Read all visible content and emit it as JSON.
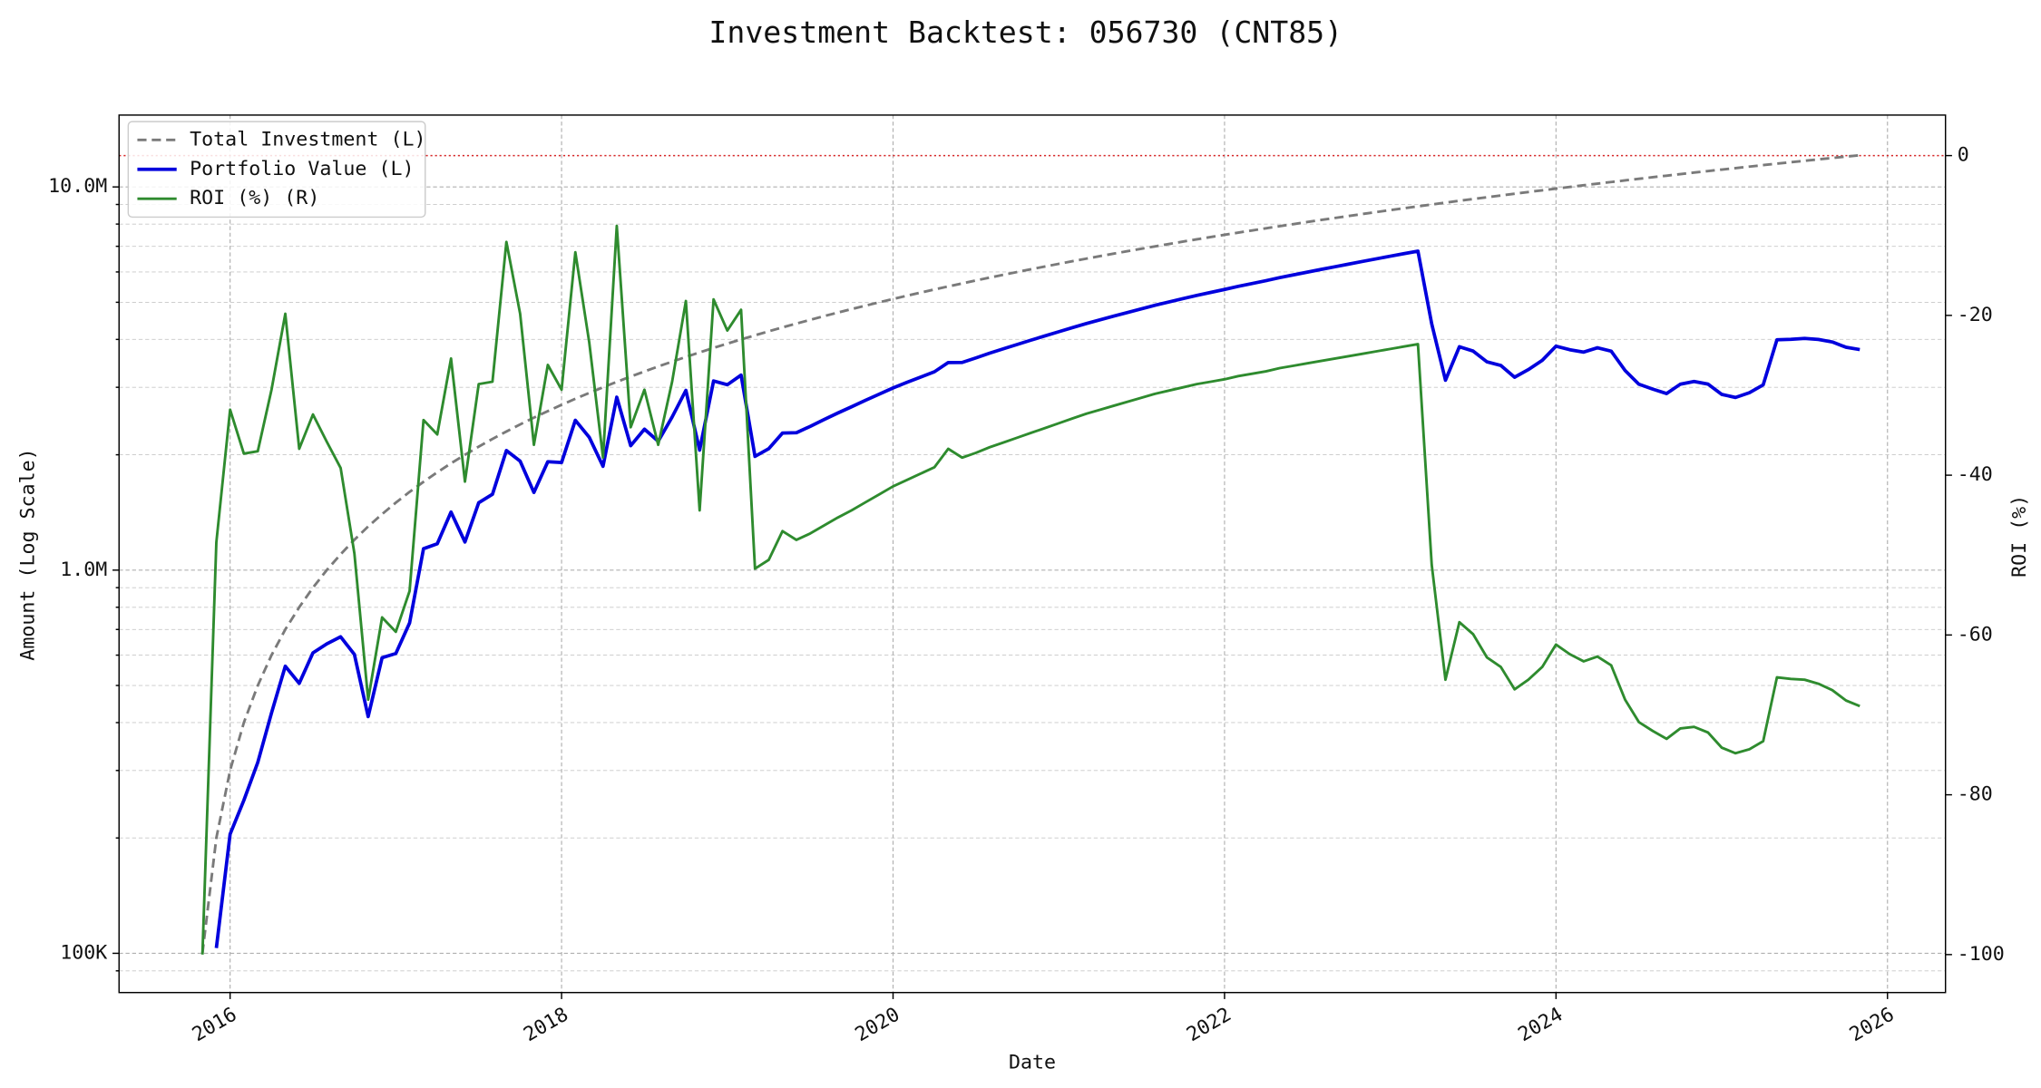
{
  "chart_data": {
    "type": "line",
    "title": "Investment Backtest: 056730 (CNT85)",
    "xlabel": "Date",
    "ylabel": "Amount (Log Scale)",
    "y2label": "ROI (%)",
    "x": [
      2015.833,
      2015.917,
      2016,
      2016.083,
      2016.167,
      2016.25,
      2016.333,
      2016.417,
      2016.5,
      2016.583,
      2016.667,
      2016.75,
      2016.833,
      2016.917,
      2017,
      2017.083,
      2017.167,
      2017.25,
      2017.333,
      2017.417,
      2017.5,
      2017.583,
      2017.667,
      2017.75,
      2017.833,
      2017.917,
      2018,
      2018.083,
      2018.167,
      2018.25,
      2018.333,
      2018.417,
      2018.5,
      2018.583,
      2018.667,
      2018.75,
      2018.833,
      2018.917,
      2019,
      2019.083,
      2019.167,
      2019.25,
      2019.333,
      2019.417,
      2019.5,
      2019.583,
      2019.667,
      2019.75,
      2019.833,
      2019.917,
      2020,
      2020.083,
      2020.167,
      2020.25,
      2020.333,
      2020.417,
      2020.5,
      2020.583,
      2020.667,
      2020.75,
      2020.833,
      2020.917,
      2021,
      2021.083,
      2021.167,
      2021.25,
      2021.333,
      2021.417,
      2021.5,
      2021.583,
      2021.667,
      2021.75,
      2021.833,
      2021.917,
      2022,
      2022.083,
      2022.167,
      2022.25,
      2022.333,
      2022.417,
      2022.5,
      2022.583,
      2022.667,
      2022.75,
      2022.833,
      2022.917,
      2023,
      2023.083,
      2023.167,
      2023.25,
      2023.333,
      2023.417,
      2023.5,
      2023.583,
      2023.667,
      2023.75,
      2023.833,
      2023.917,
      2024,
      2024.083,
      2024.167,
      2024.25,
      2024.333,
      2024.417,
      2024.5,
      2024.583,
      2024.667,
      2024.75,
      2024.833,
      2024.917,
      2025,
      2025.083,
      2025.167,
      2025.25,
      2025.333,
      2025.417,
      2025.5,
      2025.583,
      2025.667,
      2025.75,
      2025.833
    ],
    "xlim": [
      2015.33,
      2026.35
    ],
    "xticks": [
      2016,
      2018,
      2020,
      2022,
      2024,
      2026
    ],
    "yscale": "log",
    "ylim": [
      79000,
      15400000
    ],
    "yticks": [
      {
        "value": 100000,
        "label": "100K"
      },
      {
        "value": 1000000,
        "label": "1.0M"
      },
      {
        "value": 10000000,
        "label": "10.0M"
      }
    ],
    "yminorticks": [
      90000,
      200000,
      300000,
      400000,
      500000,
      600000,
      700000,
      800000,
      900000,
      2000000,
      3000000,
      4000000,
      5000000,
      6000000,
      7000000,
      8000000,
      9000000
    ],
    "y_color": "#0000cc",
    "y2lim": [
      -104.75,
      5.07
    ],
    "y2ticks": [
      -100,
      -80,
      -60,
      -40,
      -20,
      0
    ],
    "y2_color": "#228b22",
    "grid": true,
    "legend": "upper left",
    "reference_line": {
      "axis": "y2",
      "value": 0,
      "color": "#d62728"
    },
    "series": [
      {
        "name": "Total Investment (L)",
        "color": "#7a7a7a",
        "style": "dashed",
        "linewidth": 2,
        "axis": "y",
        "values": [
          100000,
          200000,
          300000,
          400000,
          500000,
          600000,
          700000,
          800000,
          900000,
          1000000,
          1100000,
          1200000,
          1300000,
          1400000,
          1500000,
          1600000,
          1700000,
          1800000,
          1900000,
          2000000,
          2100000,
          2200000,
          2300000,
          2400000,
          2500000,
          2600000,
          2700000,
          2800000,
          2900000,
          3000000,
          3100000,
          3200000,
          3300000,
          3400000,
          3500000,
          3600000,
          3700000,
          3800000,
          3900000,
          4000000,
          4100000,
          4200000,
          4300000,
          4400000,
          4500000,
          4600000,
          4700000,
          4800000,
          4900000,
          5000000,
          5100000,
          5200000,
          5300000,
          5400000,
          5500000,
          5600000,
          5700000,
          5800000,
          5900000,
          6000000,
          6100000,
          6200000,
          6300000,
          6400000,
          6500000,
          6600000,
          6700000,
          6800000,
          6900000,
          7000000,
          7100000,
          7200000,
          7300000,
          7400000,
          7500000,
          7600000,
          7700000,
          7800000,
          7900000,
          8000000,
          8100000,
          8200000,
          8300000,
          8400000,
          8500000,
          8600000,
          8700000,
          8800000,
          8900000,
          9000000,
          9100000,
          9200000,
          9300000,
          9400000,
          9500000,
          9600000,
          9700000,
          9800000,
          9900000,
          10000000,
          10100000,
          10200000,
          10300000,
          10400000,
          10500000,
          10600000,
          10700000,
          10800000,
          10900000,
          11000000,
          11100000,
          11200000,
          11300000,
          11400000,
          11500000,
          11600000,
          11700000,
          11800000,
          11900000,
          12000000,
          12100000
        ]
      },
      {
        "name": "Portfolio Value (L)",
        "color": "#0000dd",
        "style": "solid",
        "linewidth": 2.6,
        "axis": "y",
        "values": [
          null,
          103200,
          204600,
          250800,
          315000,
          424200,
          561400,
          506400,
          608400,
          642000,
          669900,
          602400,
          414700,
          590800,
          606000,
          728000,
          1137300,
          1171800,
          1417400,
          1184000,
          1499400,
          1577400,
          2051600,
          1924800,
          1595000,
          1918800,
          1908900,
          2461200,
          2221400,
          1866000,
          2827200,
          2112000,
          2333100,
          2169200,
          2509500,
          2944800,
          2057200,
          3116000,
          3045900,
          3228000,
          1980300,
          2074800,
          2279000,
          2283600,
          2371500,
          2470200,
          2570900,
          2668800,
          2773400,
          2880000,
          2988600,
          3088800,
          3190600,
          3294000,
          3481500,
          3483200,
          3579600,
          3683000,
          3781900,
          3882000,
          3983300,
          4085800,
          4189500,
          4294400,
          4400500,
          4501200,
          4602900,
          4705600,
          4809300,
          4914000,
          5012600,
          5112000,
          5212200,
          5305800,
          5400000,
          5502400,
          5597900,
          5694000,
          5798600,
          5896000,
          5994000,
          6092600,
          6191800,
          6291600,
          6392000,
          6493000,
          6594600,
          6696800,
          6799600,
          4392000,
          3130400,
          3827200,
          3729300,
          3496800,
          3420000,
          3187200,
          3336800,
          3528000,
          3841200,
          3760000,
          3706700,
          3804600,
          3728600,
          3317600,
          3055500,
          2968000,
          2889000,
          3056400,
          3106500,
          3058000,
          2874900,
          2822400,
          2904100,
          3043800,
          3990500,
          4002000,
          4024800,
          4000200,
          3938900,
          3816000,
          3763100
        ]
      },
      {
        "name": "ROI (%) (R)",
        "color": "#2e8b2e",
        "style": "solid",
        "linewidth": 2,
        "axis": "y2",
        "values": [
          -100,
          -48.4,
          -31.8,
          -37.3,
          -37,
          -29.3,
          -19.8,
          -36.7,
          -32.4,
          -35.8,
          -39.1,
          -49.8,
          -68.1,
          -57.8,
          -59.6,
          -54.5,
          -33.1,
          -34.9,
          -25.4,
          -40.8,
          -28.6,
          -28.3,
          -10.8,
          -19.8,
          -36.2,
          -26.2,
          -29.3,
          -12.1,
          -23.4,
          -37.8,
          -8.8,
          -34,
          -29.3,
          -36.2,
          -28.3,
          -18.2,
          -44.4,
          -18,
          -21.9,
          -19.3,
          -51.7,
          -50.6,
          -47,
          -48.1,
          -47.3,
          -46.3,
          -45.3,
          -44.4,
          -43.4,
          -42.4,
          -41.4,
          -40.6,
          -39.8,
          -39,
          -36.7,
          -37.8,
          -37.2,
          -36.5,
          -35.9,
          -35.3,
          -34.7,
          -34.1,
          -33.5,
          -32.9,
          -32.3,
          -31.8,
          -31.3,
          -30.8,
          -30.3,
          -29.8,
          -29.4,
          -29,
          -28.6,
          -28.3,
          -28,
          -27.6,
          -27.3,
          -27,
          -26.6,
          -26.3,
          -26,
          -25.7,
          -25.4,
          -25.1,
          -24.8,
          -24.5,
          -24.2,
          -23.9,
          -23.6,
          -51.2,
          -65.6,
          -58.4,
          -59.9,
          -62.8,
          -64,
          -66.8,
          -65.6,
          -64,
          -61.2,
          -62.4,
          -63.3,
          -62.7,
          -63.8,
          -68.1,
          -70.9,
          -72,
          -73,
          -71.7,
          -71.5,
          -72.2,
          -74.1,
          -74.8,
          -74.3,
          -73.3,
          -65.3,
          -65.5,
          -65.6,
          -66.1,
          -66.9,
          -68.2,
          -68.9
        ]
      }
    ]
  }
}
